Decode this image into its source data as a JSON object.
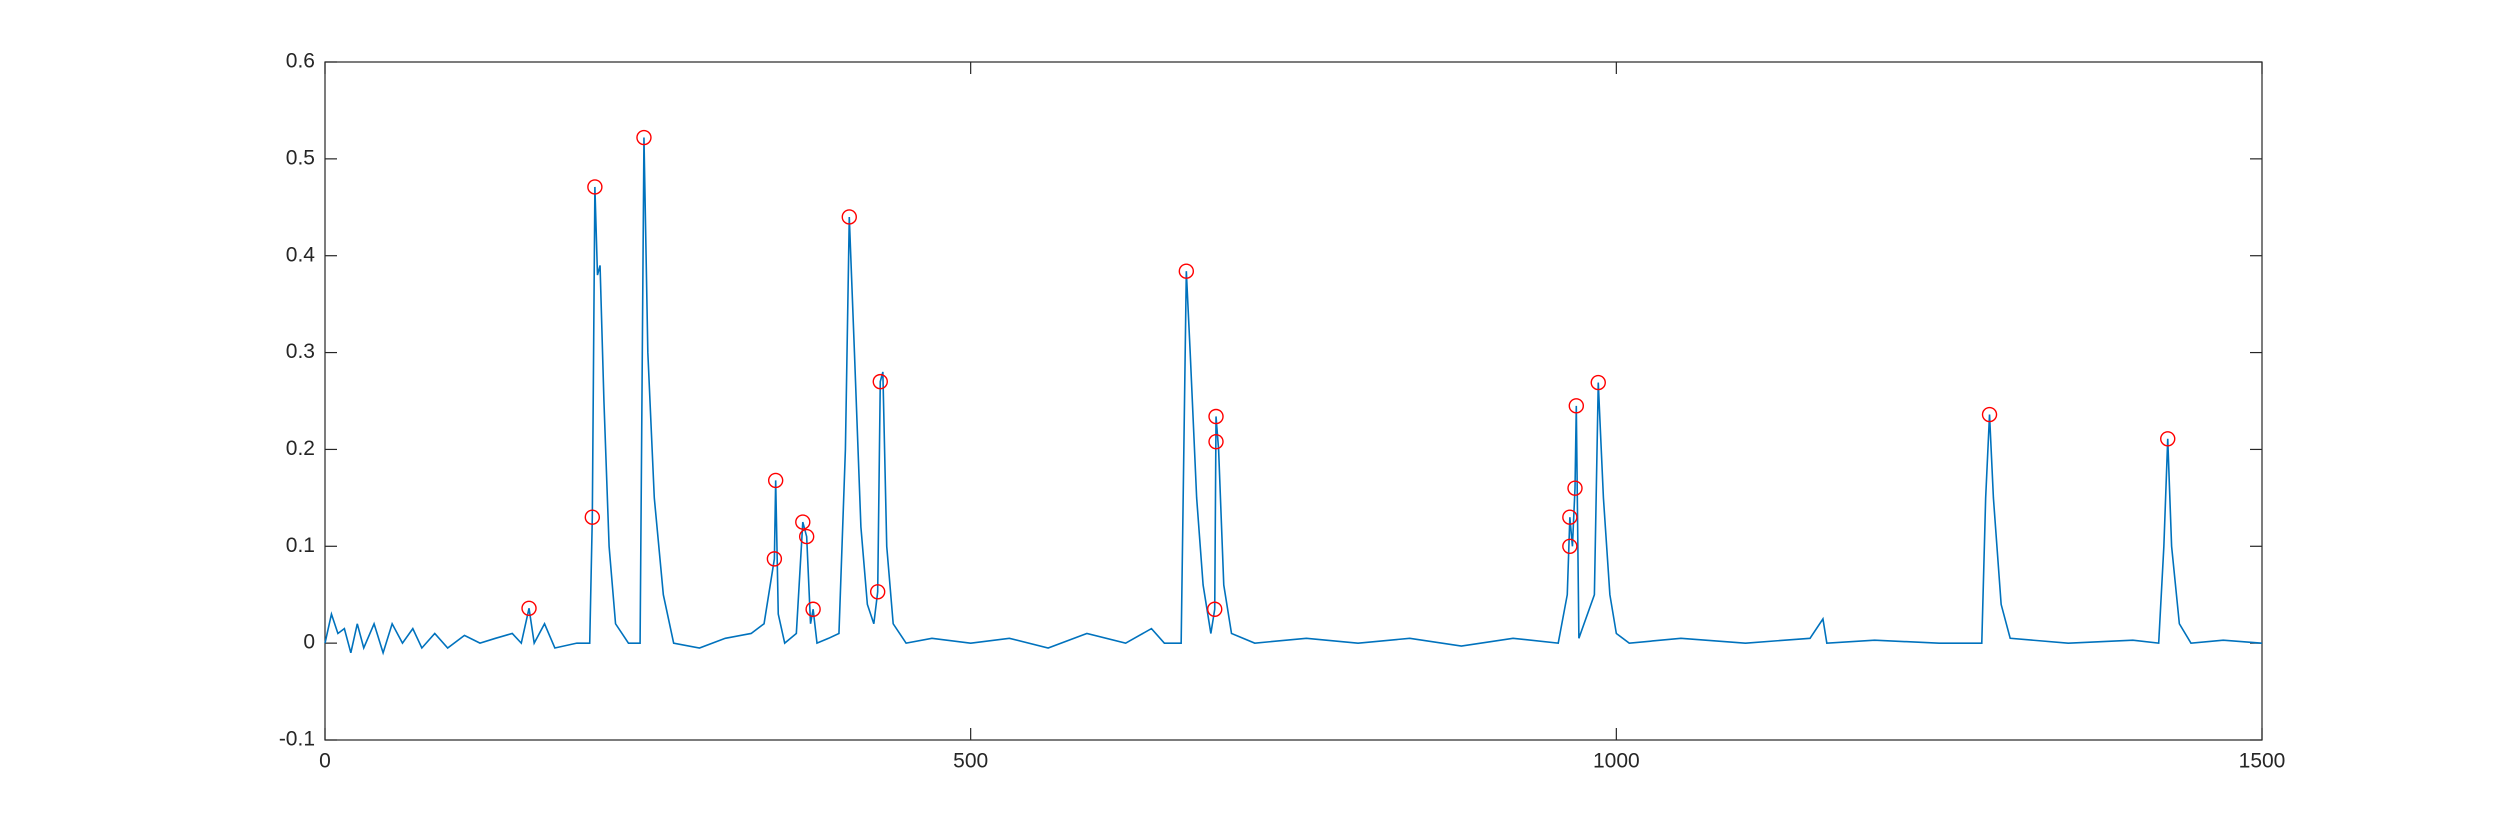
{
  "chart_data": {
    "type": "line",
    "xlim": [
      0,
      1500
    ],
    "xticks": [
      0,
      500,
      1000,
      1500
    ],
    "ylim": [
      -0.1,
      0.6
    ],
    "yticks": [
      -0.1,
      0,
      0.1,
      0.2,
      0.3,
      0.4,
      0.5,
      0.6
    ],
    "grid": false,
    "box": true,
    "series": [
      {
        "type": "line",
        "color": "#0072bd",
        "x": [
          0,
          5,
          10,
          15,
          20,
          25,
          30,
          38,
          45,
          52,
          60,
          68,
          75,
          85,
          95,
          108,
          120,
          132,
          145,
          152,
          158,
          162,
          170,
          178,
          195,
          205,
          207,
          209,
          211,
          213,
          216,
          220,
          225,
          235,
          244,
          247,
          250,
          255,
          262,
          270,
          290,
          310,
          330,
          340,
          348,
          349,
          351,
          356,
          365,
          370,
          373,
          376,
          378,
          381,
          390,
          398,
          403,
          406,
          410,
          415,
          420,
          425,
          428,
          430,
          432,
          435,
          440,
          450,
          470,
          500,
          530,
          560,
          590,
          620,
          640,
          650,
          663,
          667,
          670,
          675,
          680,
          686,
          689,
          690,
          692,
          696,
          702,
          720,
          760,
          800,
          840,
          880,
          920,
          955,
          962,
          964,
          966,
          968,
          969,
          971,
          975,
          983,
          986,
          990,
          995,
          1000,
          1010,
          1050,
          1100,
          1150,
          1160,
          1163,
          1200,
          1250,
          1283,
          1286,
          1289,
          1292,
          1298,
          1305,
          1350,
          1400,
          1420,
          1424,
          1427,
          1430,
          1436,
          1445,
          1470,
          1500
        ],
        "values": [
          0,
          0.03,
          0.01,
          0.015,
          -0.01,
          0.02,
          -0.005,
          0.02,
          -0.01,
          0.02,
          0,
          0.015,
          -0.005,
          0.01,
          -0.005,
          0.008,
          0,
          0.005,
          0.01,
          0,
          0.036,
          0,
          0.02,
          -0.005,
          0,
          0,
          0.13,
          0.471,
          0.38,
          0.39,
          0.25,
          0.1,
          0.02,
          0,
          0,
          0.522,
          0.3,
          0.15,
          0.05,
          0,
          -0.005,
          0.005,
          0.01,
          0.02,
          0.087,
          0.168,
          0.03,
          0,
          0.01,
          0.125,
          0.11,
          0.02,
          0.035,
          0,
          0.005,
          0.01,
          0.2,
          0.44,
          0.3,
          0.12,
          0.04,
          0.02,
          0.053,
          0.27,
          0.28,
          0.1,
          0.02,
          0,
          0.005,
          0,
          0.005,
          -0.005,
          0.01,
          0,
          0.015,
          0,
          0,
          0.384,
          0.3,
          0.15,
          0.06,
          0.01,
          0.035,
          0.234,
          0.2,
          0.06,
          0.01,
          0,
          0.005,
          0,
          0.005,
          -0.003,
          0.005,
          0,
          0.05,
          0.13,
          0.1,
          0.16,
          0.245,
          0.005,
          0.02,
          0.05,
          0.269,
          0.15,
          0.05,
          0.01,
          0,
          0.005,
          0,
          0.005,
          0.025,
          0,
          0.003,
          0,
          0,
          0.15,
          0.236,
          0.15,
          0.04,
          0.005,
          0,
          0.003,
          0,
          0.1,
          0.211,
          0.1,
          0.02,
          0,
          0.003,
          0
        ]
      },
      {
        "type": "scatter",
        "marker": "circle",
        "color": "#ff0000",
        "x": [
          158,
          207,
          209,
          247,
          348,
          349,
          370,
          373,
          378,
          406,
          428,
          430,
          667,
          689,
          690,
          690,
          964,
          964,
          968,
          969,
          986,
          1289,
          1427
        ],
        "values": [
          0.036,
          0.13,
          0.471,
          0.522,
          0.087,
          0.168,
          0.125,
          0.11,
          0.035,
          0.44,
          0.053,
          0.27,
          0.384,
          0.035,
          0.208,
          0.234,
          0.1,
          0.13,
          0.16,
          0.245,
          0.269,
          0.236,
          0.211
        ]
      }
    ]
  }
}
